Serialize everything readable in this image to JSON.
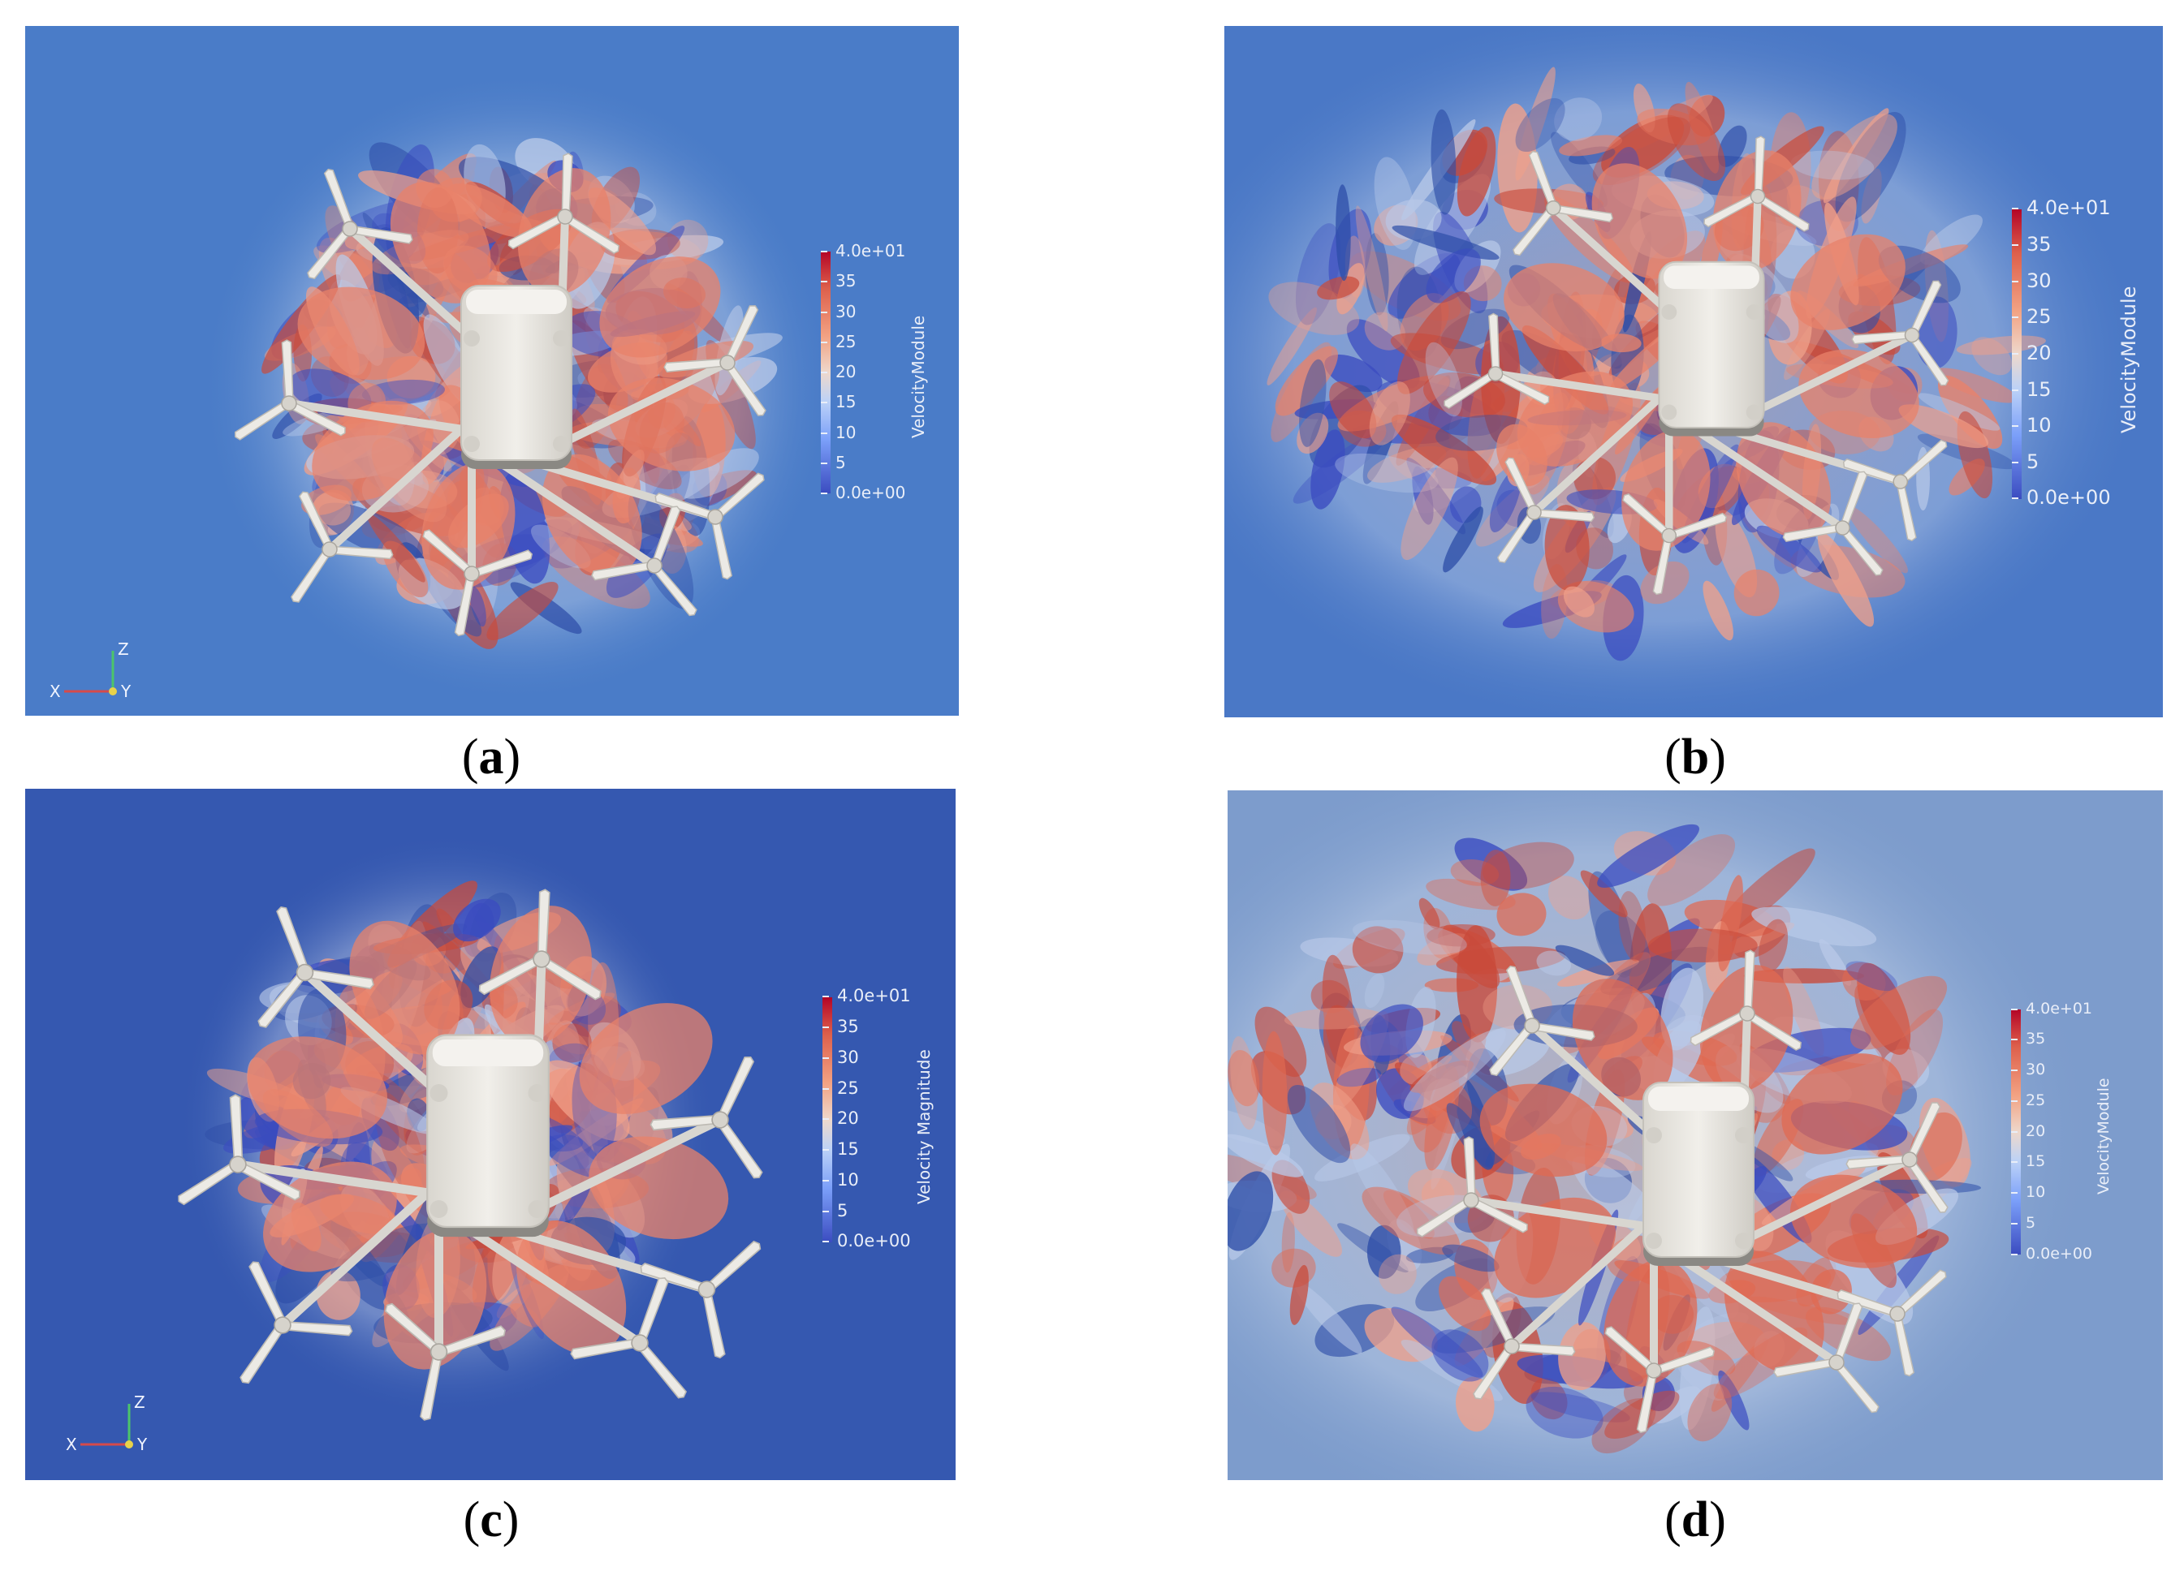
{
  "panels": [
    {
      "id": "a",
      "caption": "a",
      "bg": "#4a7cc8",
      "ring": "#e8826a",
      "colorbar": {
        "title": "VelocityModule",
        "ticks": [
          "4.0e+01",
          "35",
          "30",
          "25",
          "20",
          "15",
          "10",
          "5",
          "0.0e+00"
        ]
      },
      "axes": {
        "x": "X",
        "y": "Y",
        "z": "Z"
      }
    },
    {
      "id": "b",
      "caption": "b",
      "bg": "#4a78c6",
      "ring": "#e8826a",
      "colorbar": {
        "title": "VelocityModule",
        "ticks": [
          "4.0e+01",
          "35",
          "30",
          "25",
          "20",
          "15",
          "10",
          "5",
          "0.0e+00"
        ]
      }
    },
    {
      "id": "c",
      "caption": "c",
      "bg": "#3558b0",
      "ring": "#e8826a",
      "colorbar": {
        "title": "Velocity Magnitude",
        "ticks": [
          "4.0e+01",
          "35",
          "30",
          "25",
          "20",
          "15",
          "10",
          "5",
          "0.0e+00"
        ]
      },
      "axes": {
        "x": "X",
        "y": "Y",
        "z": "Z"
      }
    },
    {
      "id": "d",
      "caption": "d",
      "bg": "#7d9ccc",
      "ring": "#e06a52",
      "colorbar": {
        "title": "VelocityModule",
        "ticks": [
          "4.0e+01",
          "35",
          "30",
          "25",
          "20",
          "15",
          "10",
          "5",
          "0.0e+00"
        ]
      }
    }
  ]
}
